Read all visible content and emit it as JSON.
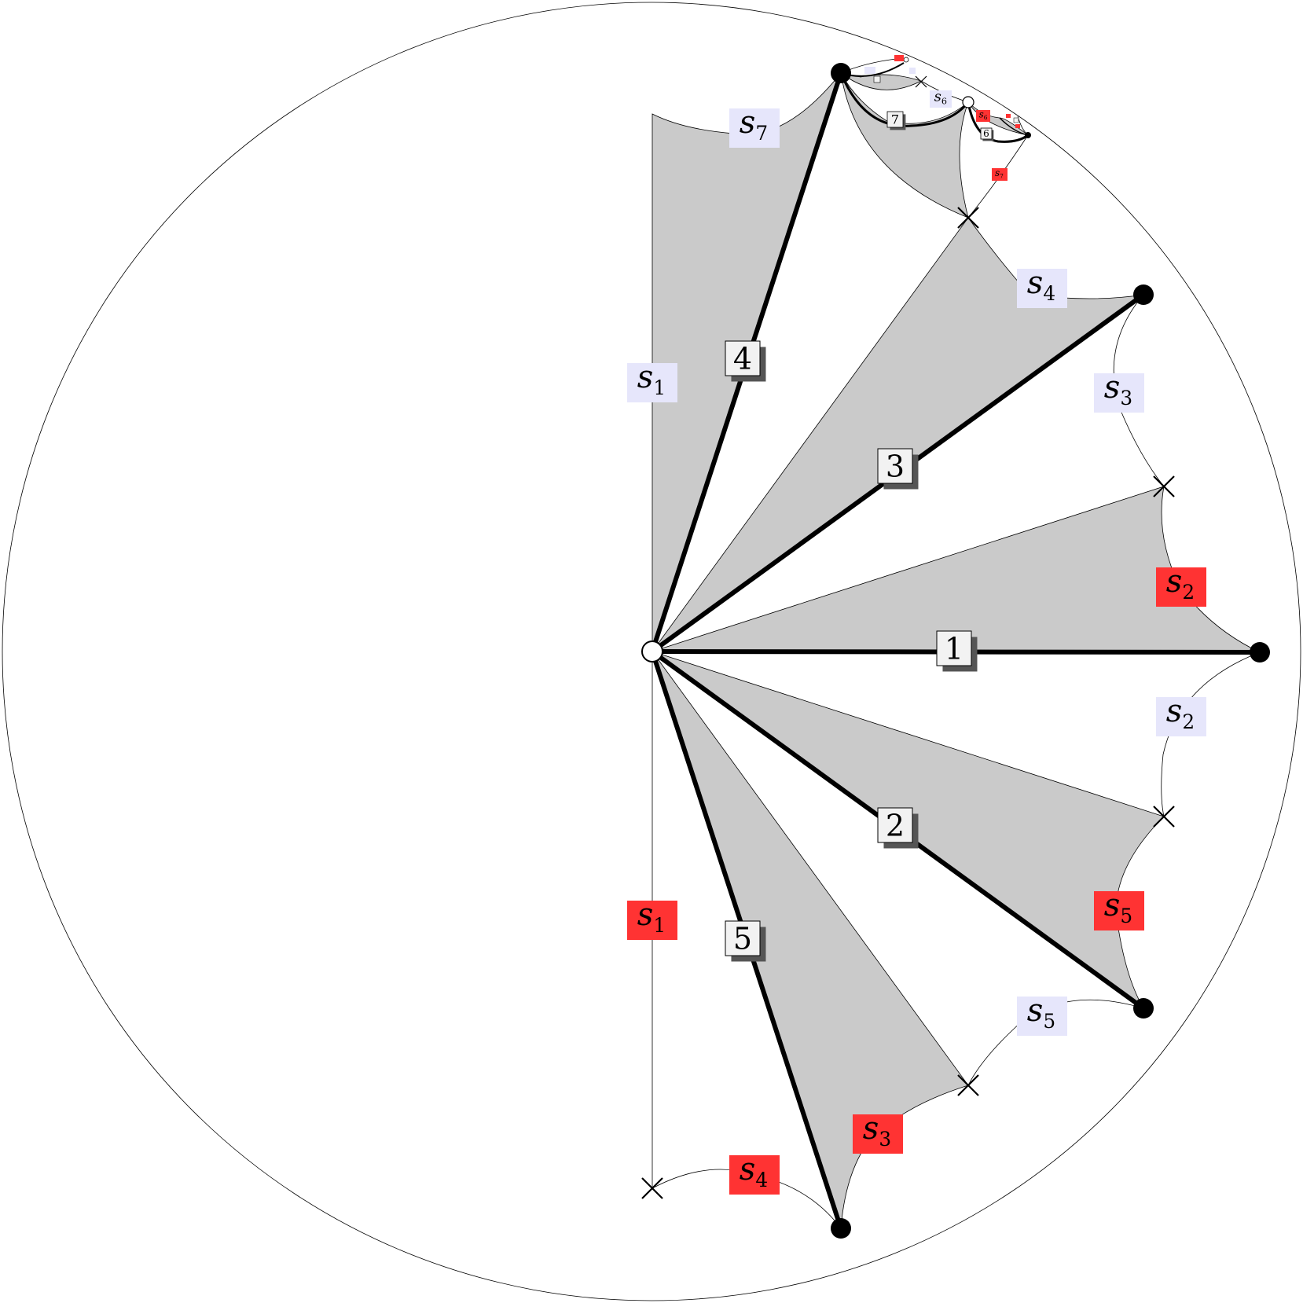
{
  "colors": {
    "region_fill": "#cacaca",
    "light_label": "#e6e6fb",
    "red_label": "#ff3333",
    "edge": "#000000",
    "box_fill": "#f2f2f2",
    "box_shadow": "#555555"
  },
  "edges": [
    {
      "num": "1"
    },
    {
      "num": "2"
    },
    {
      "num": "3"
    },
    {
      "num": "4"
    },
    {
      "num": "5"
    }
  ],
  "sublabels": [
    {
      "letter": "s",
      "index": "7",
      "style": "light"
    },
    {
      "letter": "s",
      "index": "1",
      "style": "light"
    },
    {
      "letter": "s",
      "index": "4",
      "style": "light"
    },
    {
      "letter": "s",
      "index": "3",
      "style": "light"
    },
    {
      "letter": "s",
      "index": "2",
      "style": "red"
    },
    {
      "letter": "s",
      "index": "2",
      "style": "light"
    },
    {
      "letter": "s",
      "index": "5",
      "style": "red"
    },
    {
      "letter": "s",
      "index": "5",
      "style": "light"
    },
    {
      "letter": "s",
      "index": "3",
      "style": "red"
    },
    {
      "letter": "s",
      "index": "4",
      "style": "red"
    },
    {
      "letter": "s",
      "index": "1",
      "style": "red"
    },
    {
      "letter": "s",
      "index": "6",
      "style": "light"
    },
    {
      "letter": "s",
      "index": "6",
      "style": "red"
    },
    {
      "letter": "s",
      "index": "7",
      "style": "red"
    }
  ],
  "small_edges": [
    {
      "num": "7"
    },
    {
      "num": "6"
    }
  ]
}
